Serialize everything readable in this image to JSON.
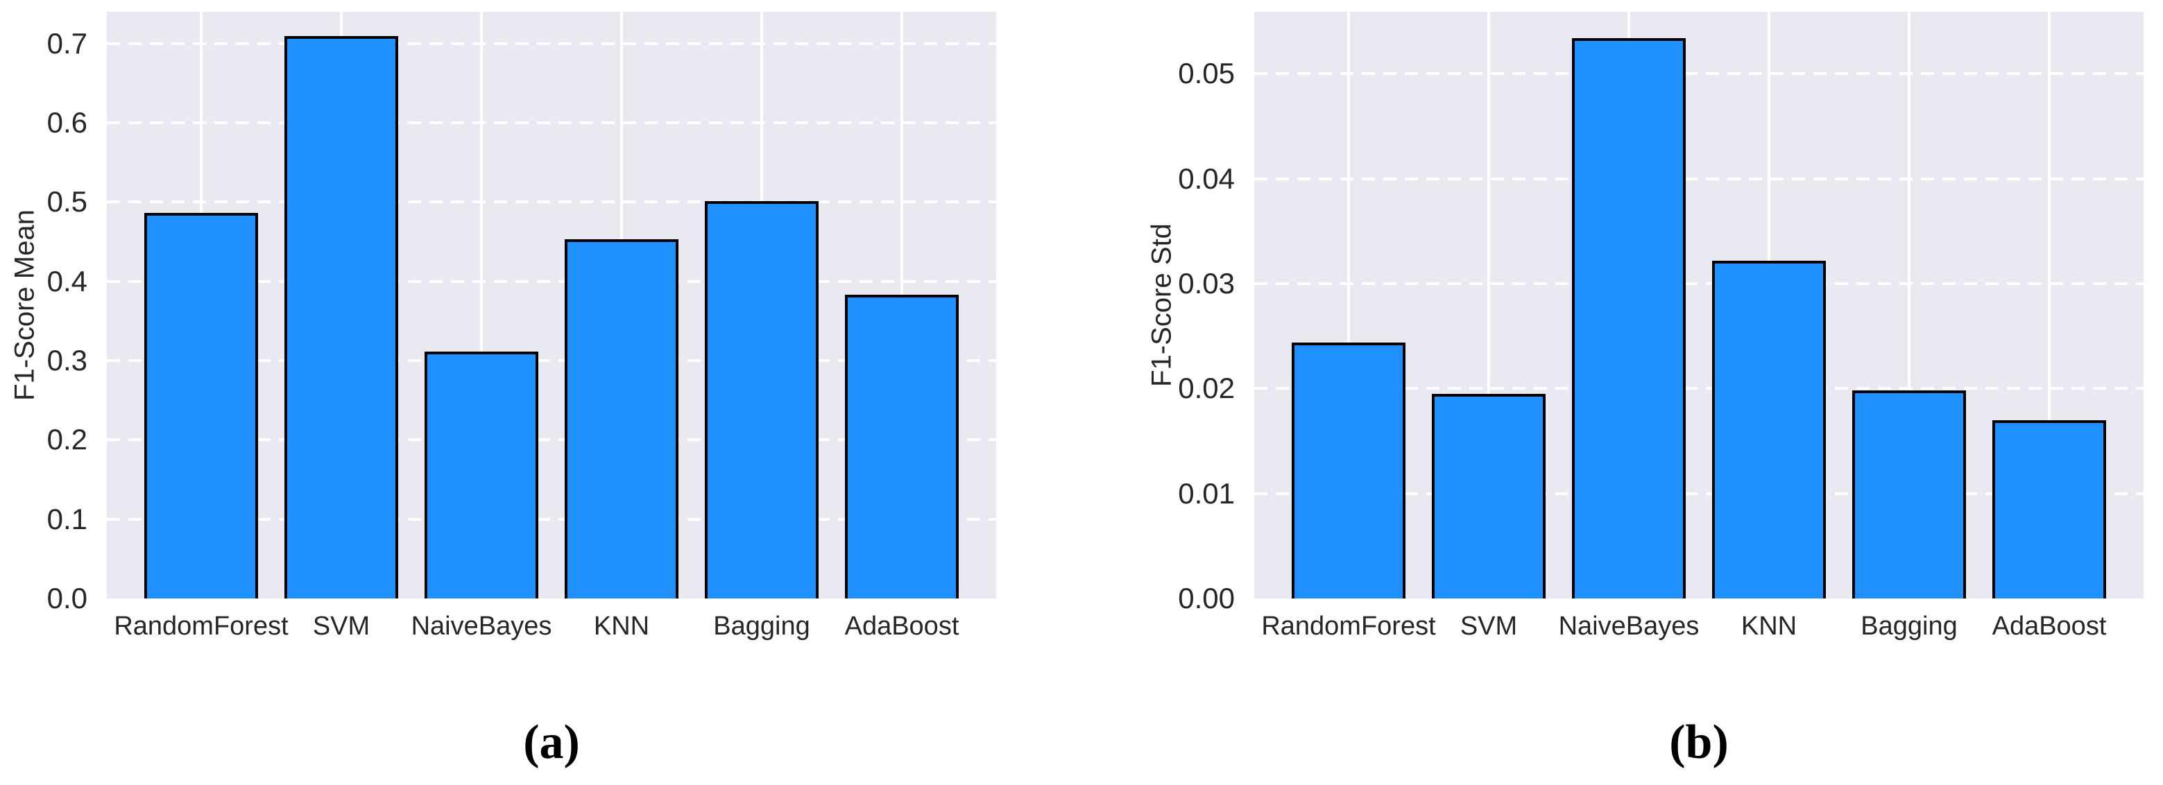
{
  "figure": {
    "caption_a": "(a)",
    "caption_b": "(b)",
    "colors": {
      "bar_fill": "#1E90FF",
      "bar_edge": "#000000",
      "plot_background": "#E9E9F2",
      "gridline": "#FFFFFF",
      "text": "#262626"
    }
  },
  "chart_data": [
    {
      "type": "bar",
      "panel": "a",
      "title": "",
      "xlabel": "",
      "ylabel": "F1-Score Mean",
      "categories": [
        "RandomForest",
        "SVM",
        "NaiveBayes",
        "KNN",
        "Bagging",
        "AdaBoost"
      ],
      "values": [
        0.486,
        0.709,
        0.311,
        0.453,
        0.501,
        0.383
      ],
      "ylim": [
        0,
        0.74
      ],
      "yticks": [
        0.0,
        0.1,
        0.2,
        0.3,
        0.4,
        0.5,
        0.6,
        0.7
      ],
      "ytick_labels": [
        "0.0",
        "0.1",
        "0.2",
        "0.3",
        "0.4",
        "0.5",
        "0.6",
        "0.7"
      ],
      "grid": "horizontal-dashed-white, vertical-solid-white",
      "legend": "none"
    },
    {
      "type": "bar",
      "panel": "b",
      "title": "",
      "xlabel": "",
      "ylabel": "F1-Score Std",
      "categories": [
        "RandomForest",
        "SVM",
        "NaiveBayes",
        "KNN",
        "Bagging",
        "AdaBoost"
      ],
      "values": [
        0.0244,
        0.0195,
        0.0534,
        0.0322,
        0.0198,
        0.017
      ],
      "ylim": [
        0,
        0.0559
      ],
      "yticks": [
        0.0,
        0.01,
        0.02,
        0.03,
        0.04,
        0.05
      ],
      "ytick_labels": [
        "0.00",
        "0.01",
        "0.02",
        "0.03",
        "0.04",
        "0.05"
      ],
      "grid": "horizontal-dashed-white, vertical-solid-white",
      "legend": "none"
    }
  ]
}
